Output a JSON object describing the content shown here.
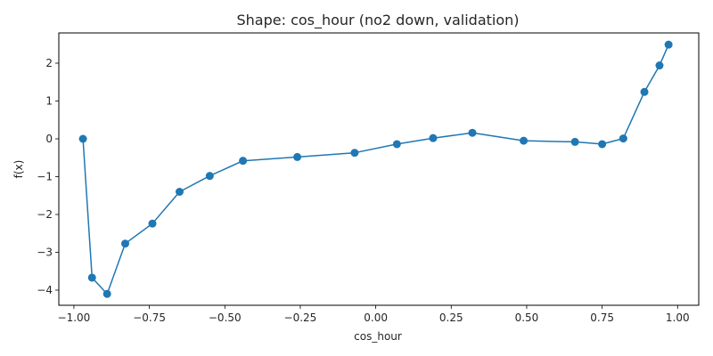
{
  "chart_data": {
    "type": "line",
    "title": "Shape: cos_hour (no2 down, validation)",
    "xlabel": "cos_hour",
    "ylabel": "f(x)",
    "xlim": [
      -1.05,
      1.07
    ],
    "ylim": [
      -4.4,
      2.8
    ],
    "xticks": [
      -1.0,
      -0.75,
      -0.5,
      -0.25,
      0.0,
      0.25,
      0.5,
      0.75,
      1.0
    ],
    "xtick_labels": [
      "−1.00",
      "−0.75",
      "−0.50",
      "−0.25",
      "0.00",
      "0.25",
      "0.50",
      "0.75",
      "1.00"
    ],
    "yticks": [
      -4,
      -3,
      -2,
      -1,
      0,
      1,
      2
    ],
    "ytick_labels": [
      "−4",
      "−3",
      "−2",
      "−1",
      "0",
      "1",
      "2"
    ],
    "grid": false,
    "series": [
      {
        "color": "#1f77b4",
        "x": [
          -0.97,
          -0.94,
          -0.89,
          -0.83,
          -0.74,
          -0.65,
          -0.55,
          -0.44,
          -0.26,
          -0.07,
          0.07,
          0.19,
          0.32,
          0.49,
          0.66,
          0.75,
          0.82,
          0.89,
          0.94,
          0.97
        ],
        "y": [
          0.0,
          -3.67,
          -4.1,
          -2.77,
          -2.24,
          -1.4,
          -0.98,
          -0.58,
          -0.48,
          -0.37,
          -0.14,
          0.02,
          0.16,
          -0.05,
          -0.08,
          -0.14,
          0.01,
          1.24,
          1.94,
          2.49
        ]
      }
    ]
  }
}
